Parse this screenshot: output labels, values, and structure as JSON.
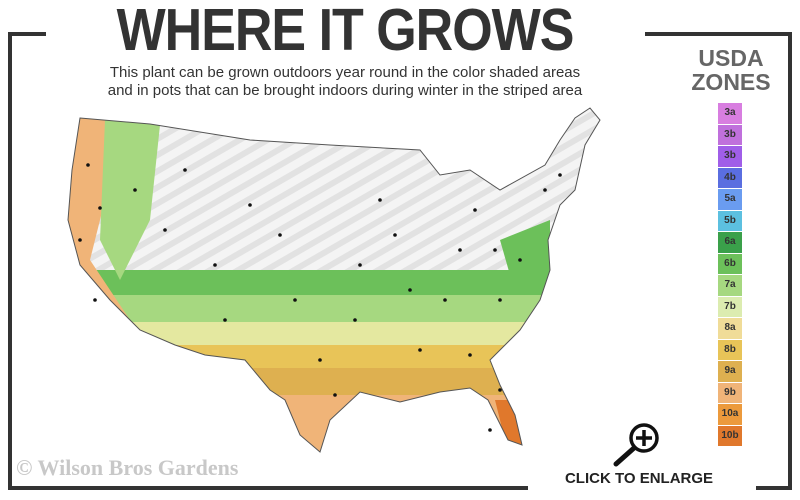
{
  "header": {
    "title": "WHERE IT GROWS",
    "subtitle_line1": "This plant can be grown outdoors year round in the color shaded areas",
    "subtitle_line2": "and in pots that can be brought indoors during winter in the striped area"
  },
  "legend": {
    "title_line1": "USDA",
    "title_line2": "ZONES",
    "zones": [
      {
        "label": "3a",
        "color": "#d87ee0"
      },
      {
        "label": "3b",
        "color": "#c070dc"
      },
      {
        "label": "3b",
        "color": "#a05ee8"
      },
      {
        "label": "4b",
        "color": "#5a6ee0"
      },
      {
        "label": "5a",
        "color": "#6a9cf0"
      },
      {
        "label": "5b",
        "color": "#5cc0e0"
      },
      {
        "label": "6a",
        "color": "#3aa04a"
      },
      {
        "label": "6b",
        "color": "#6cc05a"
      },
      {
        "label": "7a",
        "color": "#a6d880"
      },
      {
        "label": "7b",
        "color": "#dcecb0"
      },
      {
        "label": "8a",
        "color": "#f0dc98"
      },
      {
        "label": "8b",
        "color": "#e8c458"
      },
      {
        "label": "9a",
        "color": "#deb050"
      },
      {
        "label": "9b",
        "color": "#f0b478"
      },
      {
        "label": "10a",
        "color": "#ec9a3c"
      },
      {
        "label": "10b",
        "color": "#e0782c"
      }
    ]
  },
  "footer": {
    "copyright": "© Wilson Bros Gardens",
    "enlarge_label": "CLICK TO ENLARGE"
  },
  "icons": {
    "enlarge": "magnifier-plus-icon"
  }
}
